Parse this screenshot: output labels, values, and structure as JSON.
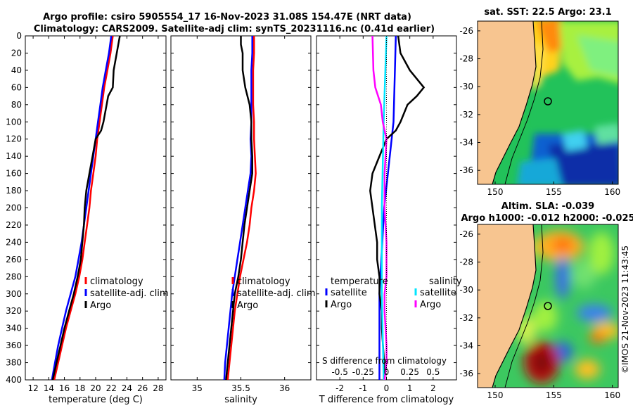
{
  "title_line1": "Argo profile: csiro 5905554_17 16-Nov-2023 31.08S 154.47E (NRT data)",
  "title_line2": "Climatology: CARS2009. Satellite-adj clim: synTS_20231116.nc (0.41d earlier)",
  "map1_title": "sat. SST: 22.5 Argo: 23.1",
  "map2_title1": "Altim. SLA: -0.039",
  "map2_title2": "Argo h1000: -0.012 h2000: -0.025",
  "timestamp": "©IMOS 21-Nov-2023 11:43:45",
  "colors": {
    "climatology": "#ff0000",
    "satellite": "#0000ff",
    "argo": "#000000",
    "sat_s": "#00e5ff",
    "argo_s": "#ff00ff",
    "land": "#f7c590"
  },
  "chart_data": [
    {
      "type": "line",
      "title": "",
      "xlabel": "temperature (deg C)",
      "ylabel": "",
      "xlim": [
        11,
        29
      ],
      "ylim": [
        400,
        0
      ],
      "xticks": [
        "12",
        "14",
        "16",
        "18",
        "20",
        "22",
        "24",
        "26",
        "28"
      ],
      "xtick_values": [
        12,
        14,
        16,
        18,
        20,
        22,
        24,
        26,
        28
      ],
      "yticks": [
        "0",
        "20",
        "40",
        "60",
        "80",
        "100",
        "120",
        "140",
        "160",
        "180",
        "200",
        "220",
        "240",
        "260",
        "280",
        "300",
        "320",
        "340",
        "360",
        "380",
        "400"
      ],
      "legend": [
        "climatology",
        "satellite-adj. clim",
        "Argo"
      ],
      "series": [
        {
          "name": "climatology",
          "depth": [
            0,
            20,
            40,
            60,
            80,
            100,
            120,
            140,
            160,
            180,
            200,
            220,
            240,
            260,
            280,
            300,
            320,
            340,
            360,
            380,
            400
          ],
          "values": [
            22.2,
            21.9,
            21.5,
            21.1,
            20.8,
            20.5,
            20.2,
            20.0,
            19.7,
            19.4,
            19.2,
            18.9,
            18.6,
            18.3,
            17.9,
            17.4,
            16.8,
            16.2,
            15.7,
            15.2,
            14.7
          ]
        },
        {
          "name": "satellite-adj. clim",
          "depth": [
            0,
            20,
            40,
            60,
            80,
            100,
            120,
            140,
            160,
            180,
            200,
            220,
            240,
            260,
            280,
            300,
            320,
            340,
            360,
            380,
            400
          ],
          "values": [
            22.0,
            21.7,
            21.3,
            20.9,
            20.6,
            20.3,
            20.0,
            19.7,
            19.4,
            19.1,
            18.8,
            18.5,
            18.2,
            17.8,
            17.4,
            16.8,
            16.2,
            15.7,
            15.2,
            14.8,
            14.4
          ]
        },
        {
          "name": "Argo",
          "depth": [
            0,
            10,
            20,
            40,
            60,
            70,
            80,
            100,
            110,
            120,
            140,
            160,
            180,
            200,
            220,
            240,
            260,
            280,
            300,
            320,
            340,
            360,
            380,
            400
          ],
          "values": [
            23.1,
            22.9,
            22.7,
            22.3,
            22.2,
            21.6,
            21.4,
            21.0,
            20.7,
            20.0,
            19.6,
            19.2,
            18.8,
            18.6,
            18.5,
            18.3,
            18.1,
            17.7,
            17.2,
            16.6,
            16.0,
            15.5,
            15.0,
            14.5
          ]
        }
      ]
    },
    {
      "type": "line",
      "title": "",
      "xlabel": "salinity",
      "ylabel": "",
      "xlim": [
        34.7,
        36.3
      ],
      "ylim": [
        400,
        0
      ],
      "xticks": [
        "35",
        "35.5",
        "36"
      ],
      "xtick_values": [
        35,
        35.5,
        36
      ],
      "legend": [
        "climatology",
        "satellite-adj. clim",
        "Argo"
      ],
      "series": [
        {
          "name": "climatology",
          "depth": [
            0,
            20,
            40,
            60,
            80,
            100,
            120,
            140,
            160,
            180,
            200,
            220,
            240,
            260,
            280,
            300,
            320,
            340,
            360,
            380,
            400
          ],
          "values": [
            35.65,
            35.65,
            35.64,
            35.64,
            35.64,
            35.65,
            35.65,
            35.66,
            35.67,
            35.65,
            35.62,
            35.6,
            35.57,
            35.53,
            35.49,
            35.46,
            35.43,
            35.41,
            35.39,
            35.37,
            35.35
          ]
        },
        {
          "name": "satellite-adj. clim",
          "depth": [
            0,
            20,
            40,
            60,
            80,
            100,
            120,
            140,
            160,
            180,
            200,
            220,
            240,
            260,
            280,
            300,
            320,
            340,
            360,
            380,
            400
          ],
          "values": [
            35.63,
            35.63,
            35.62,
            35.62,
            35.62,
            35.62,
            35.61,
            35.62,
            35.61,
            35.58,
            35.55,
            35.52,
            35.49,
            35.46,
            35.43,
            35.4,
            35.38,
            35.36,
            35.34,
            35.32,
            35.31
          ]
        },
        {
          "name": "Argo",
          "depth": [
            0,
            10,
            20,
            40,
            60,
            80,
            100,
            120,
            140,
            160,
            180,
            200,
            220,
            240,
            260,
            280,
            300,
            320,
            340,
            360,
            380,
            400
          ],
          "values": [
            35.5,
            35.5,
            35.52,
            35.52,
            35.55,
            35.6,
            35.62,
            35.62,
            35.63,
            35.63,
            35.6,
            35.57,
            35.54,
            35.52,
            35.5,
            35.47,
            35.43,
            35.41,
            35.39,
            35.37,
            35.35,
            35.33
          ]
        }
      ]
    },
    {
      "type": "line",
      "title": "",
      "xlabel": "T difference from climatology",
      "xlabel_top": "S difference from climatology",
      "ylabel": "",
      "xlim": [
        -3,
        3
      ],
      "ylim": [
        400,
        0
      ],
      "xticks": [
        "-2",
        "-1",
        "0",
        "1",
        "2"
      ],
      "xtick_values": [
        -2,
        -1,
        0,
        1,
        2
      ],
      "s_xticks": [
        "-0.5",
        "-0.25",
        "0",
        "0.25",
        "0.5"
      ],
      "legend_left_title": "temperature",
      "legend_right_title": "salinity",
      "legend": [
        "satellite",
        "Argo",
        "satellite",
        "Argo"
      ],
      "series": [
        {
          "name": "T satellite",
          "depth": [
            0,
            100,
            200,
            300,
            400
          ],
          "values": [
            0.4,
            0.3,
            -0.1,
            -0.3,
            -0.3
          ]
        },
        {
          "name": "T Argo",
          "depth": [
            0,
            20,
            40,
            60,
            70,
            80,
            100,
            110,
            120,
            140,
            160,
            180,
            200,
            220,
            240,
            260,
            280,
            300,
            320,
            340,
            360,
            380,
            400
          ],
          "values": [
            0.5,
            0.6,
            1.0,
            1.6,
            1.3,
            0.9,
            0.6,
            0.4,
            0,
            -0.3,
            -0.6,
            -0.7,
            -0.6,
            -0.5,
            -0.4,
            -0.4,
            -0.3,
            -0.3,
            -0.2,
            -0.2,
            -0.15,
            -0.1,
            -0.1
          ]
        },
        {
          "name": "S satellite",
          "depth": [
            0,
            100,
            200,
            300,
            400
          ],
          "values": [
            0,
            -0.03,
            -0.05,
            -0.05,
            -0.03
          ]
        },
        {
          "name": "S Argo",
          "depth": [
            0,
            40,
            60,
            80,
            100,
            120,
            160,
            200,
            240,
            280,
            300,
            320,
            340,
            360,
            380,
            400
          ],
          "values": [
            -0.15,
            -0.14,
            -0.12,
            -0.06,
            -0.04,
            0,
            -0.02,
            -0.02,
            0,
            0,
            -0.02,
            -0.02,
            -0.01,
            0,
            0,
            -0.02
          ]
        }
      ]
    },
    {
      "type": "heatmap",
      "title": "sat. SST: 22.5 Argo: 23.1",
      "xticks": [
        "150",
        "155",
        "160"
      ],
      "yticks": [
        "-26",
        "-28",
        "-30",
        "-32",
        "-34",
        "-36"
      ],
      "xlim": [
        148.5,
        160.5
      ],
      "ylim": [
        -37,
        -25.3
      ],
      "argo_position": [
        154.47,
        -31.08
      ]
    },
    {
      "type": "heatmap",
      "title": "Altim. SLA: -0.039",
      "xticks": [
        "150",
        "155",
        "160"
      ],
      "yticks": [
        "-26",
        "-28",
        "-30",
        "-32",
        "-34",
        "-36"
      ],
      "xlim": [
        148.5,
        160.5
      ],
      "ylim": [
        -37,
        -25.3
      ],
      "argo_position": [
        154.47,
        -31.08
      ]
    }
  ]
}
